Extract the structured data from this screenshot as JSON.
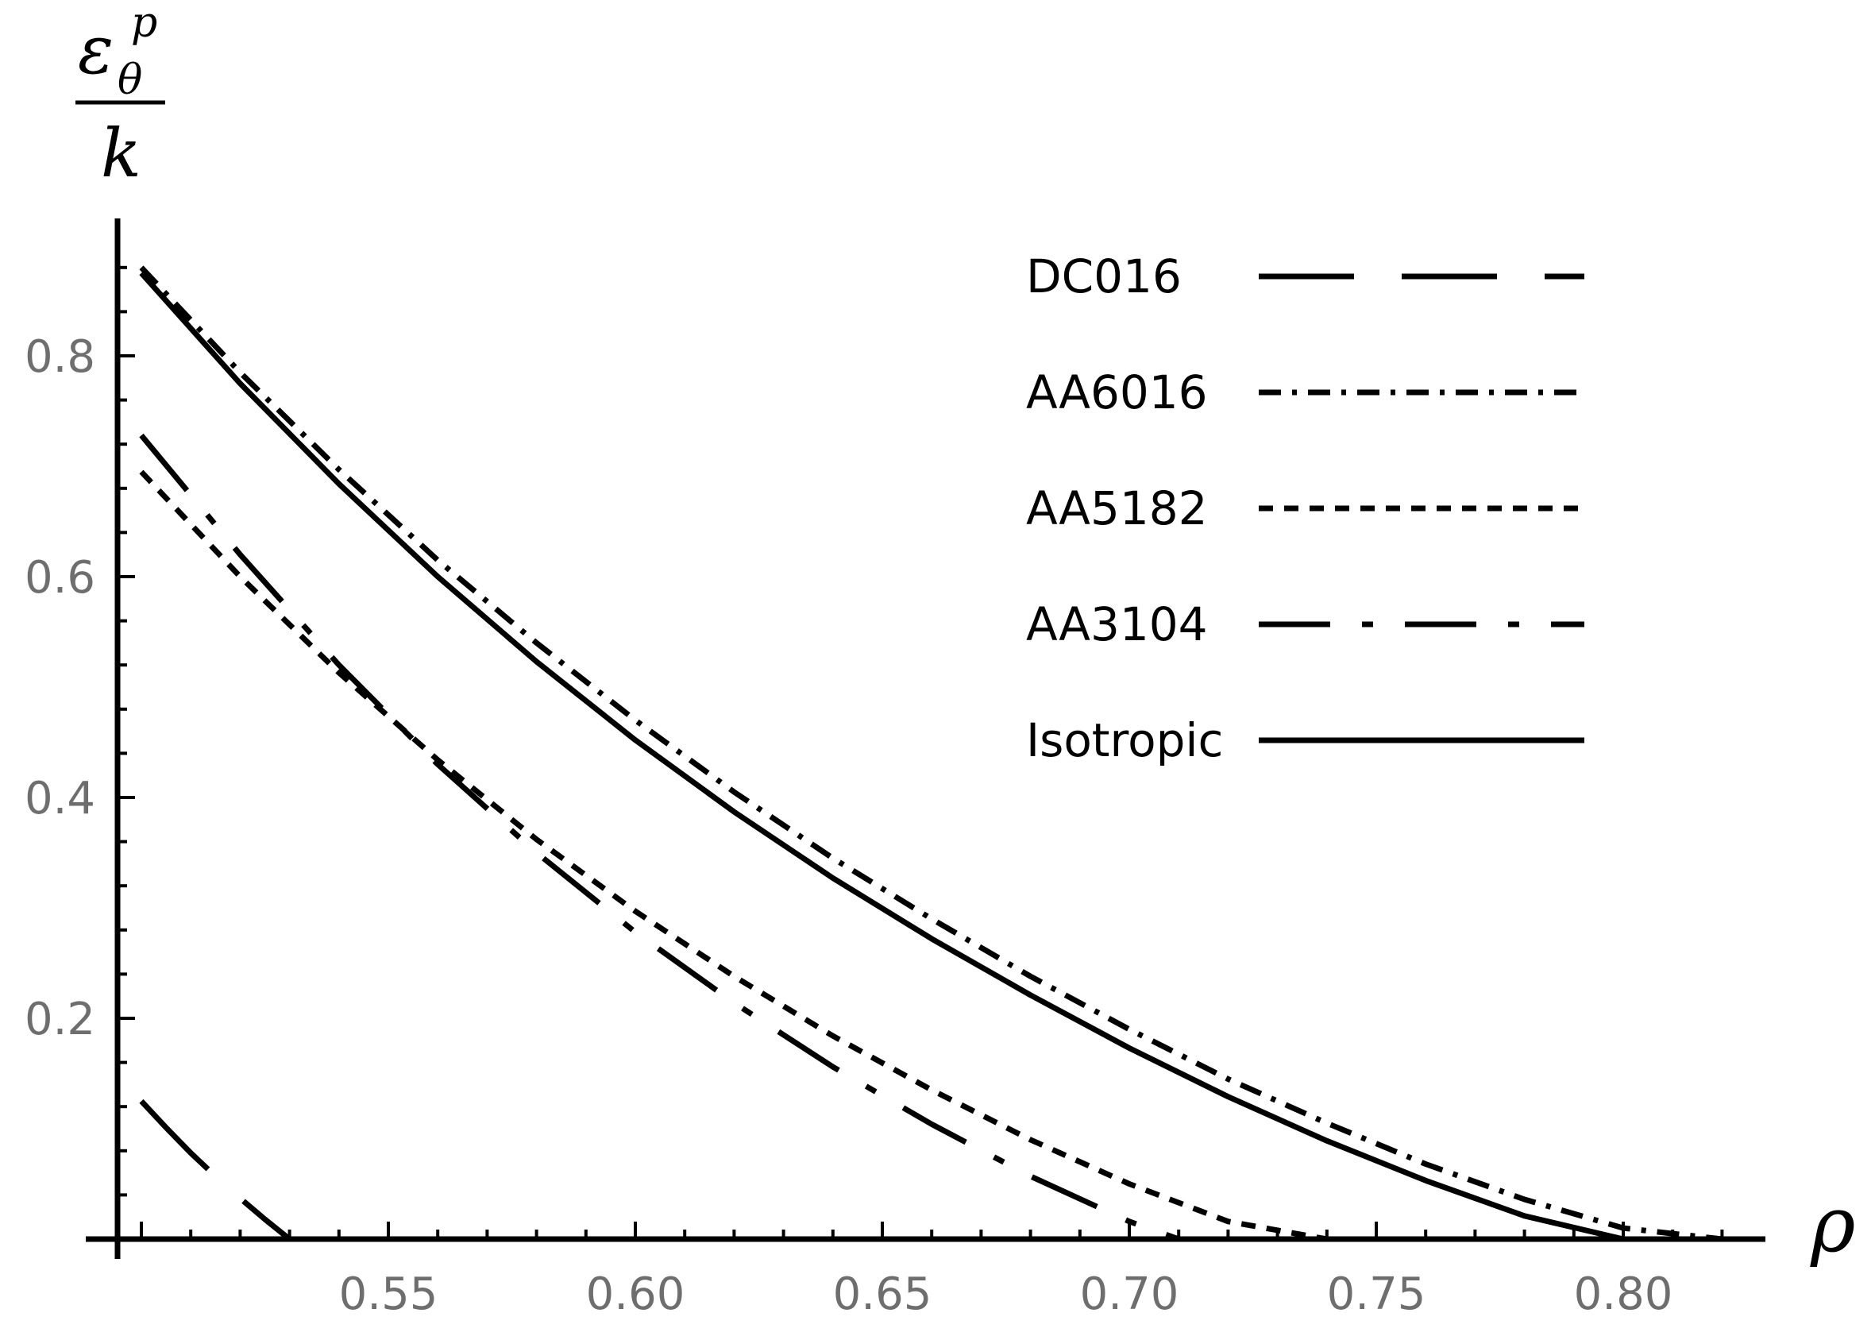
{
  "chart_data": {
    "type": "line",
    "title": "",
    "xlabel": "ρ",
    "ylabel": {
      "base": "ε",
      "superscript": "p",
      "subscript": "θ",
      "denominator": "k"
    },
    "xlim": [
      0.495,
      0.83
    ],
    "ylim": [
      0,
      0.92
    ],
    "xticks": [
      "0.55",
      "0.60",
      "0.65",
      "0.70",
      "0.75",
      "0.80"
    ],
    "yticks": [
      "0.2",
      "0.4",
      "0.6",
      "0.8"
    ],
    "grid": false,
    "legend_position": "top-right",
    "series": [
      {
        "name": "DC016",
        "dash": "long-dash",
        "x": [
          0.5,
          0.505,
          0.51,
          0.515,
          0.52,
          0.525,
          0.53
        ],
        "y": [
          0.125,
          0.101,
          0.078,
          0.057,
          0.037,
          0.018,
          0.0
        ]
      },
      {
        "name": "AA6016",
        "dash": "dash-dot",
        "x": [
          0.5,
          0.52,
          0.54,
          0.56,
          0.58,
          0.6,
          0.62,
          0.64,
          0.66,
          0.68,
          0.7,
          0.72,
          0.74,
          0.76,
          0.78,
          0.8,
          0.82
        ],
        "y": [
          0.88,
          0.785,
          0.697,
          0.615,
          0.54,
          0.47,
          0.405,
          0.345,
          0.29,
          0.238,
          0.19,
          0.145,
          0.105,
          0.068,
          0.036,
          0.01,
          0.0
        ]
      },
      {
        "name": "AA5182",
        "dash": "short-dash",
        "x": [
          0.5,
          0.52,
          0.54,
          0.56,
          0.58,
          0.6,
          0.62,
          0.64,
          0.66,
          0.68,
          0.7,
          0.72,
          0.74
        ],
        "y": [
          0.695,
          0.6,
          0.513,
          0.434,
          0.362,
          0.297,
          0.238,
          0.184,
          0.135,
          0.09,
          0.05,
          0.016,
          0.0
        ]
      },
      {
        "name": "AA3104",
        "dash": "long-dash-dot",
        "x": [
          0.5,
          0.52,
          0.54,
          0.56,
          0.58,
          0.6,
          0.62,
          0.64,
          0.66,
          0.68,
          0.7,
          0.71
        ],
        "y": [
          0.728,
          0.62,
          0.52,
          0.43,
          0.35,
          0.278,
          0.214,
          0.156,
          0.104,
          0.057,
          0.016,
          0.0
        ]
      },
      {
        "name": "Isotropic",
        "dash": "solid",
        "x": [
          0.5,
          0.52,
          0.54,
          0.56,
          0.58,
          0.6,
          0.62,
          0.64,
          0.66,
          0.68,
          0.7,
          0.72,
          0.74,
          0.76,
          0.78,
          0.8,
          0.805
        ],
        "y": [
          0.875,
          0.775,
          0.684,
          0.6,
          0.523,
          0.452,
          0.387,
          0.327,
          0.272,
          0.221,
          0.173,
          0.129,
          0.089,
          0.053,
          0.021,
          0.0,
          0.0
        ]
      }
    ]
  }
}
